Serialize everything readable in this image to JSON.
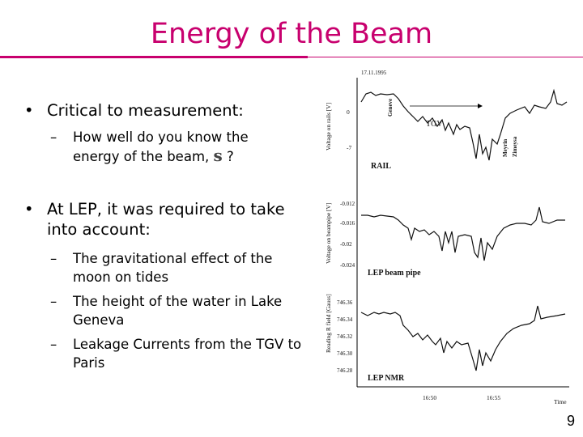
{
  "slide": {
    "title": "Energy of the Beam",
    "page_number": "9"
  },
  "bullets": [
    {
      "text": "Critical to measurement:",
      "subs": [
        {
          "text": "How well do you know the energy of the beam,",
          "symbol": "s",
          "suffix": " ?"
        }
      ]
    },
    {
      "text": "At LEP, it was required to take into account:",
      "subs": [
        {
          "text": "The gravitational effect of the moon on tides"
        },
        {
          "text": "The height of the water in Lake Geneva"
        },
        {
          "text": "Leakage Currents from the TGV to Paris"
        }
      ]
    }
  ],
  "figure": {
    "date": "17.11.1995",
    "panels": [
      {
        "ylabel": "Voltage on rails [V]",
        "panel_label": "RAIL",
        "ticks": [
          "0",
          "-7"
        ],
        "annotations": {
          "geneve": "Geneve",
          "tgv": "TGV",
          "meyrin": "Meyrin",
          "zimeysa": "Zimeysa"
        }
      },
      {
        "ylabel": "Voltage on beampipe [V]",
        "panel_label": "LEP beam pipe",
        "ticks": [
          "-0.012",
          "-0.016",
          "-0.02",
          "-0.024"
        ]
      },
      {
        "ylabel": "Reading R field [Gauss]",
        "panel_label": "LEP NMR",
        "ticks": [
          "746.36",
          "746.34",
          "746.32",
          "746.30",
          "746.28"
        ]
      }
    ],
    "x_ticks": [
      "16:50",
      "16:55"
    ],
    "x_label": "Time"
  }
}
